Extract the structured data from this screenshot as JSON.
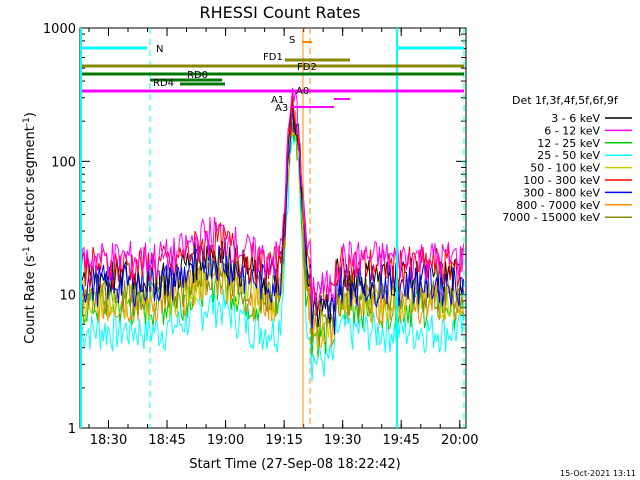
{
  "chart_data": {
    "type": "line",
    "title": "RHESSI Count Rates",
    "xlabel": "Start Time (27-Sep-08 18:22:42)",
    "ylabel_main": "Count Rate (s",
    "ylabel_sup1": "-1",
    "ylabel_mid": " detector segment",
    "ylabel_sup2": "-1",
    "ylabel_end": ")",
    "y_scale": "log",
    "ylim": [
      1,
      1000
    ],
    "xlim_minutes": [
      18.37,
      20.0
    ],
    "x_ticks": [
      {
        "label": "18:30",
        "min": 1110
      },
      {
        "label": "18:45",
        "min": 1125
      },
      {
        "label": "19:00",
        "min": 1140
      },
      {
        "label": "19:15",
        "min": 1155
      },
      {
        "label": "19:30",
        "min": 1170
      },
      {
        "label": "19:45",
        "min": 1185
      },
      {
        "label": "20:00",
        "min": 1200
      }
    ],
    "y_ticks": [
      {
        "label": "1",
        "value": 1
      },
      {
        "label": "10",
        "value": 10
      },
      {
        "label": "100",
        "value": 100
      },
      {
        "label": "1000",
        "value": 1000
      }
    ],
    "legend_title": "Det 1f,3f,4f,5f,6f,9f",
    "legend_position": "right",
    "series": [
      {
        "name": "3 - 6 keV",
        "color": "#000000",
        "base": 14,
        "peak": 260
      },
      {
        "name": "6 - 12 keV",
        "color": "#ff00ff",
        "base": 19,
        "peak": 300
      },
      {
        "name": "12 - 25 keV",
        "color": "#00cc00",
        "base": 8.5,
        "peak": 180
      },
      {
        "name": "25 - 50 keV",
        "color": "#00ffff",
        "base": 5.5,
        "peak": 150
      },
      {
        "name": "50 - 100 keV",
        "color": "#cccc00",
        "base": 9.5,
        "peak": 200
      },
      {
        "name": "100 - 300 keV",
        "color": "#ff0000",
        "base": 17,
        "peak": 280
      },
      {
        "name": "300 - 800 keV",
        "color": "#0000ff",
        "base": 12.5,
        "peak": 240
      },
      {
        "name": "800 - 7000 keV",
        "color": "#ff8800",
        "base": 9,
        "peak": 220
      },
      {
        "name": "7000 - 15000 keV",
        "color": "#888800",
        "base": 10.5,
        "peak": 230
      }
    ],
    "flare_interval_minutes": [
      1155,
      1161
    ],
    "annotations": {
      "N": "N",
      "S": "S",
      "FD1": "FD1",
      "FD2": "FD2",
      "RD0": "RD0",
      "RD4": "RD4",
      "A0": "A0",
      "A1": "A1",
      "A3": "A3"
    },
    "timestamp": "15-Oct-2021 13:11"
  }
}
